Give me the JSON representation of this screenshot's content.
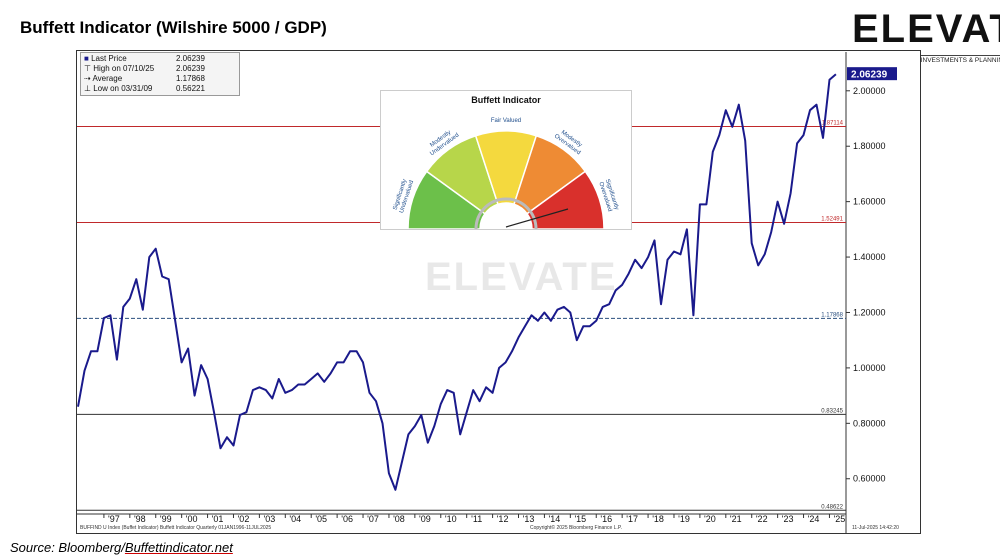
{
  "page_title": "Buffett Indicator (Wilshire 5000 / GDP)",
  "logo": {
    "word": "ELEVATE",
    "tagline": "CAPITAL ADVISORS | INVESTMENTS & PLANNING"
  },
  "source": {
    "prefix": "Source: Bloomberg/",
    "link": "Buffettindicator.net"
  },
  "watermark": "ELEVATE",
  "stats": [
    {
      "label": "Last Price",
      "value": "2.06239"
    },
    {
      "label": "High on 07/10/25",
      "value": "2.06239"
    },
    {
      "label": "Average",
      "value": "1.17868"
    },
    {
      "label": "Low on 03/31/09",
      "value": "0.56221"
    }
  ],
  "footer": {
    "left": "BUFFIND U Index (Buffet Indicator) Buffett Indicator  Quarterly 01JAN1996-11JUL2025",
    "center": "Copyright© 2025 Bloomberg Finance L.P.",
    "right": "11-Jul-2025 14:42:20"
  },
  "gauge": {
    "title": "Buffett Indicator",
    "segments": [
      {
        "label": "Significantly Undervalued",
        "color": "#6cc04a"
      },
      {
        "label": "Modestly Undervalued",
        "color": "#b7d64a"
      },
      {
        "label": "Fair Valued",
        "color": "#f4d93e"
      },
      {
        "label": "Modestly Overvalued",
        "color": "#ee8b34"
      },
      {
        "label": "Significantly Overvalued",
        "color": "#d9302c"
      }
    ]
  },
  "chart_data": {
    "type": "line",
    "title": "",
    "ylim": [
      0.48,
      2.14
    ],
    "yticks": [
      0.6,
      0.8,
      1.0,
      1.2,
      1.4,
      1.6,
      1.8,
      2.0
    ],
    "ytick_labels": [
      "0.60000",
      "0.80000",
      "1.00000",
      "1.20000",
      "1.40000",
      "1.60000",
      "1.80000",
      "2.00000"
    ],
    "xticks": [
      {
        "label": "'97",
        "x": 1997.0
      },
      {
        "label": "'98",
        "x": 1998.0
      },
      {
        "label": "'99",
        "x": 1999.0
      },
      {
        "label": "'00",
        "x": 2000.0
      },
      {
        "label": "'01",
        "x": 2001.0
      },
      {
        "label": "'02",
        "x": 2002.0
      },
      {
        "label": "'03",
        "x": 2003.0
      },
      {
        "label": "'04",
        "x": 2004.0
      },
      {
        "label": "'05",
        "x": 2005.0
      },
      {
        "label": "'06",
        "x": 2006.0
      },
      {
        "label": "'07",
        "x": 2007.0
      },
      {
        "label": "'08",
        "x": 2008.0
      },
      {
        "label": "'09",
        "x": 2009.0
      },
      {
        "label": "'10",
        "x": 2010.0
      },
      {
        "label": "'11",
        "x": 2011.0
      },
      {
        "label": "'12",
        "x": 2012.0
      },
      {
        "label": "'13",
        "x": 2013.0
      },
      {
        "label": "'14",
        "x": 2014.0
      },
      {
        "label": "'15",
        "x": 2015.0
      },
      {
        "label": "'16",
        "x": 2016.0
      },
      {
        "label": "'17",
        "x": 2017.0
      },
      {
        "label": "'18",
        "x": 2018.0
      },
      {
        "label": "'19",
        "x": 2019.0
      },
      {
        "label": "'20",
        "x": 2020.0
      },
      {
        "label": "'21",
        "x": 2021.0
      },
      {
        "label": "'22",
        "x": 2022.0
      },
      {
        "label": "'23",
        "x": 2023.0
      },
      {
        "label": "'24",
        "x": 2024.0
      },
      {
        "label": "'25",
        "x": 2025.0
      }
    ],
    "xlim": [
      1996.0,
      2025.6
    ],
    "series": [
      {
        "color": "#1a1a8c",
        "x": [
          1996.0,
          1996.25,
          1996.5,
          1996.75,
          1997.0,
          1997.25,
          1997.5,
          1997.75,
          1998.0,
          1998.25,
          1998.5,
          1998.75,
          1999.0,
          1999.25,
          1999.5,
          1999.75,
          2000.0,
          2000.25,
          2000.5,
          2000.75,
          2001.0,
          2001.25,
          2001.5,
          2001.75,
          2002.0,
          2002.25,
          2002.5,
          2002.75,
          2003.0,
          2003.25,
          2003.5,
          2003.75,
          2004.0,
          2004.25,
          2004.5,
          2004.75,
          2005.0,
          2005.25,
          2005.5,
          2005.75,
          2006.0,
          2006.25,
          2006.5,
          2006.75,
          2007.0,
          2007.25,
          2007.5,
          2007.75,
          2008.0,
          2008.25,
          2008.5,
          2008.75,
          2009.0,
          2009.25,
          2009.5,
          2009.75,
          2010.0,
          2010.25,
          2010.5,
          2010.75,
          2011.0,
          2011.25,
          2011.5,
          2011.75,
          2012.0,
          2012.25,
          2012.5,
          2012.75,
          2013.0,
          2013.25,
          2013.5,
          2013.75,
          2014.0,
          2014.25,
          2014.5,
          2014.75,
          2015.0,
          2015.25,
          2015.5,
          2015.75,
          2016.0,
          2016.25,
          2016.5,
          2016.75,
          2017.0,
          2017.25,
          2017.5,
          2017.75,
          2018.0,
          2018.25,
          2018.5,
          2018.75,
          2019.0,
          2019.25,
          2019.5,
          2019.75,
          2020.0,
          2020.25,
          2020.5,
          2020.75,
          2021.0,
          2021.25,
          2021.5,
          2021.75,
          2022.0,
          2022.25,
          2022.5,
          2022.75,
          2023.0,
          2023.25,
          2023.5,
          2023.75,
          2024.0,
          2024.25,
          2024.5,
          2024.75,
          2025.0,
          2025.25
        ],
        "values": [
          0.86,
          0.99,
          1.06,
          1.06,
          1.18,
          1.19,
          1.03,
          1.22,
          1.25,
          1.32,
          1.21,
          1.4,
          1.43,
          1.33,
          1.32,
          1.17,
          1.02,
          1.07,
          0.9,
          1.01,
          0.96,
          0.84,
          0.71,
          0.75,
          0.72,
          0.83,
          0.84,
          0.92,
          0.93,
          0.92,
          0.89,
          0.96,
          0.91,
          0.92,
          0.94,
          0.94,
          0.96,
          0.98,
          0.95,
          0.98,
          1.02,
          1.02,
          1.06,
          1.06,
          1.02,
          0.91,
          0.88,
          0.8,
          0.62,
          0.56,
          0.66,
          0.76,
          0.79,
          0.83,
          0.73,
          0.79,
          0.87,
          0.92,
          0.91,
          0.76,
          0.84,
          0.92,
          0.88,
          0.93,
          0.91,
          1.0,
          1.02,
          1.06,
          1.11,
          1.15,
          1.19,
          1.17,
          1.2,
          1.17,
          1.21,
          1.22,
          1.2,
          1.1,
          1.15,
          1.15,
          1.17,
          1.22,
          1.23,
          1.28,
          1.3,
          1.34,
          1.39,
          1.36,
          1.4,
          1.46,
          1.23,
          1.39,
          1.42,
          1.41,
          1.5,
          1.19,
          1.59,
          1.59,
          1.78,
          1.84,
          1.93,
          1.87,
          1.95,
          1.82,
          1.45,
          1.37,
          1.41,
          1.49,
          1.6,
          1.52,
          1.63,
          1.81,
          1.84,
          1.93,
          1.95,
          1.83,
          2.04,
          2.06
        ]
      }
    ],
    "reference_lines": [
      {
        "value": 1.87114,
        "label": "1.87114",
        "color": "#c0292b",
        "style": "solid"
      },
      {
        "value": 1.52491,
        "label": "1.52491",
        "color": "#c0292b",
        "style": "solid"
      },
      {
        "value": 1.17868,
        "label": "1.17868",
        "color": "#2a4f7e",
        "style": "dashed"
      },
      {
        "value": 0.83245,
        "label": "0.83245",
        "color": "#333333",
        "style": "solid"
      },
      {
        "value": 0.48622,
        "label": "0.48622",
        "color": "#333333",
        "style": "solid"
      }
    ],
    "last_value_label": "2.06239"
  }
}
